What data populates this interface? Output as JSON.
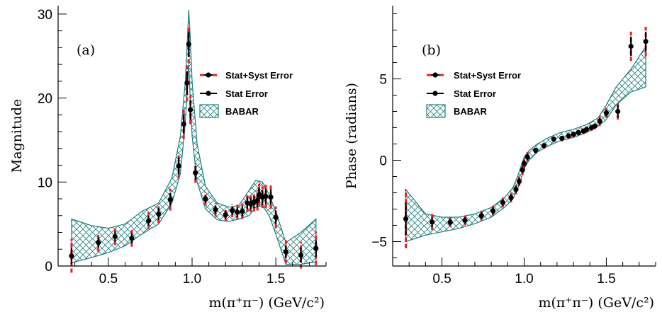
{
  "chart_data": [
    {
      "type": "scatter",
      "panel_label": "(a)",
      "title": "",
      "xlabel": "m(π⁺π⁻) (GeV/c²)",
      "ylabel": "Magnitude",
      "xlim": [
        0.2,
        1.8
      ],
      "ylim": [
        0,
        31
      ],
      "xticks": [
        0.5,
        1.0,
        1.5
      ],
      "xtick_labels": [
        "0.5",
        "1.0",
        "1.5"
      ],
      "yticks": [
        0,
        10,
        20,
        30
      ],
      "ytick_labels": [
        "0",
        "10",
        "20",
        "30"
      ],
      "legend_position": "top-right",
      "legend": [
        "Stat+Syst Error",
        "Stat Error",
        "BABAR"
      ],
      "series": [
        {
          "label": "data",
          "x": [
            0.28,
            0.44,
            0.54,
            0.64,
            0.74,
            0.8,
            0.87,
            0.92,
            0.95,
            0.97,
            0.98,
            0.99,
            1.02,
            1.08,
            1.14,
            1.2,
            1.24,
            1.27,
            1.3,
            1.33,
            1.35,
            1.37,
            1.39,
            1.4,
            1.42,
            1.44,
            1.47,
            1.5,
            1.56,
            1.65,
            1.74
          ],
          "y": [
            1.2,
            2.8,
            3.5,
            3.3,
            5.4,
            6.2,
            7.9,
            11.9,
            16.9,
            21.8,
            26.4,
            18.6,
            11.1,
            8.0,
            6.7,
            6.1,
            6.6,
            6.4,
            6.5,
            7.5,
            7.4,
            7.6,
            7.8,
            8.5,
            8.2,
            8.3,
            8.2,
            5.8,
            1.7,
            1.3,
            2.1
          ],
          "stat_err": [
            1.0,
            0.6,
            0.6,
            0.6,
            0.6,
            0.7,
            0.8,
            1.0,
            1.2,
            1.4,
            1.5,
            1.2,
            0.8,
            0.5,
            0.5,
            0.5,
            0.5,
            0.6,
            0.6,
            0.7,
            0.7,
            0.7,
            0.8,
            0.9,
            0.9,
            0.9,
            0.9,
            0.8,
            0.8,
            0.9,
            1.0
          ],
          "syst_err": [
            2.0,
            1.1,
            1.0,
            1.0,
            1.0,
            1.1,
            1.3,
            1.5,
            1.8,
            2.2,
            2.3,
            1.7,
            1.2,
            0.8,
            0.8,
            0.7,
            0.8,
            0.9,
            0.9,
            1.1,
            1.0,
            1.1,
            1.2,
            1.3,
            1.3,
            1.4,
            1.4,
            1.3,
            1.4,
            1.6,
            2.0
          ]
        }
      ],
      "band": {
        "label": "BABAR",
        "x": [
          0.28,
          0.4,
          0.5,
          0.6,
          0.7,
          0.8,
          0.88,
          0.93,
          0.96,
          0.98,
          0.99,
          1.0,
          1.03,
          1.08,
          1.15,
          1.22,
          1.28,
          1.34,
          1.38,
          1.42,
          1.46,
          1.5,
          1.56,
          1.65,
          1.74
        ],
        "upper": [
          5.6,
          4.8,
          4.5,
          5.0,
          6.5,
          7.5,
          10.5,
          15.5,
          22.0,
          30.5,
          27.0,
          22.0,
          14.5,
          9.5,
          7.5,
          7.0,
          7.2,
          9.0,
          10.2,
          10.0,
          8.5,
          6.5,
          2.8,
          4.0,
          5.6
        ],
        "lower": [
          0.4,
          1.0,
          1.6,
          2.4,
          3.8,
          5.0,
          7.5,
          11.0,
          17.0,
          24.0,
          19.5,
          15.5,
          10.0,
          6.8,
          5.5,
          5.3,
          5.6,
          6.0,
          7.0,
          7.2,
          6.0,
          3.8,
          0.2,
          0.2,
          0.5
        ]
      }
    },
    {
      "type": "scatter",
      "panel_label": "(b)",
      "title": "",
      "xlabel": "m(π⁺π⁻) (GeV/c²)",
      "ylabel": "Phase (radians)",
      "xlim": [
        0.2,
        1.8
      ],
      "ylim": [
        -6.5,
        9.5
      ],
      "xticks": [
        0.5,
        1.0,
        1.5
      ],
      "xtick_labels": [
        "0.5",
        "1.0",
        "1.5"
      ],
      "yticks": [
        -5,
        0,
        5
      ],
      "ytick_labels": [
        "−5",
        "0",
        "5"
      ],
      "legend_position": "top-left",
      "legend": [
        "Stat+Syst Error",
        "Stat Error",
        "BABAR"
      ],
      "series": [
        {
          "label": "data",
          "x": [
            0.28,
            0.44,
            0.55,
            0.64,
            0.74,
            0.81,
            0.87,
            0.92,
            0.95,
            0.97,
            0.99,
            1.0,
            1.02,
            1.07,
            1.12,
            1.18,
            1.23,
            1.27,
            1.3,
            1.33,
            1.36,
            1.38,
            1.41,
            1.43,
            1.46,
            1.5,
            1.57,
            1.65,
            1.74
          ],
          "y": [
            -3.6,
            -3.8,
            -3.8,
            -3.7,
            -3.4,
            -3.1,
            -2.6,
            -2.3,
            -1.8,
            -1.3,
            -0.6,
            -0.2,
            0.2,
            0.6,
            0.9,
            1.3,
            1.35,
            1.5,
            1.6,
            1.7,
            1.8,
            1.9,
            2.0,
            2.1,
            2.4,
            2.9,
            3.0,
            7.0,
            7.3
          ],
          "stat_err": [
            1.0,
            0.3,
            0.2,
            0.2,
            0.2,
            0.2,
            0.2,
            0.2,
            0.2,
            0.2,
            0.2,
            0.2,
            0.2,
            0.15,
            0.15,
            0.15,
            0.15,
            0.15,
            0.15,
            0.15,
            0.15,
            0.15,
            0.15,
            0.15,
            0.2,
            0.2,
            0.4,
            0.6,
            0.6
          ],
          "syst_err": [
            1.8,
            0.5,
            0.3,
            0.3,
            0.3,
            0.3,
            0.3,
            0.3,
            0.3,
            0.3,
            0.3,
            0.3,
            0.3,
            0.2,
            0.2,
            0.2,
            0.2,
            0.2,
            0.2,
            0.2,
            0.2,
            0.2,
            0.2,
            0.2,
            0.3,
            0.3,
            0.5,
            0.9,
            0.9
          ]
        }
      ],
      "band": {
        "label": "BABAR",
        "x": [
          0.28,
          0.4,
          0.5,
          0.6,
          0.7,
          0.8,
          0.88,
          0.93,
          0.96,
          0.98,
          1.0,
          1.03,
          1.08,
          1.15,
          1.22,
          1.3,
          1.38,
          1.45,
          1.5,
          1.56,
          1.65,
          1.74
        ],
        "upper": [
          -1.8,
          -3.3,
          -3.5,
          -3.5,
          -3.3,
          -2.9,
          -2.3,
          -1.7,
          -1.0,
          -0.4,
          0.2,
          0.6,
          1.0,
          1.4,
          1.7,
          1.9,
          2.2,
          2.6,
          3.4,
          4.5,
          5.6,
          7.0
        ],
        "lower": [
          -5.0,
          -4.6,
          -4.4,
          -4.2,
          -3.9,
          -3.5,
          -2.9,
          -2.4,
          -1.8,
          -1.2,
          -0.5,
          0.0,
          0.5,
          0.9,
          1.2,
          1.4,
          1.7,
          2.1,
          2.5,
          3.4,
          4.2,
          4.5
        ]
      }
    }
  ]
}
